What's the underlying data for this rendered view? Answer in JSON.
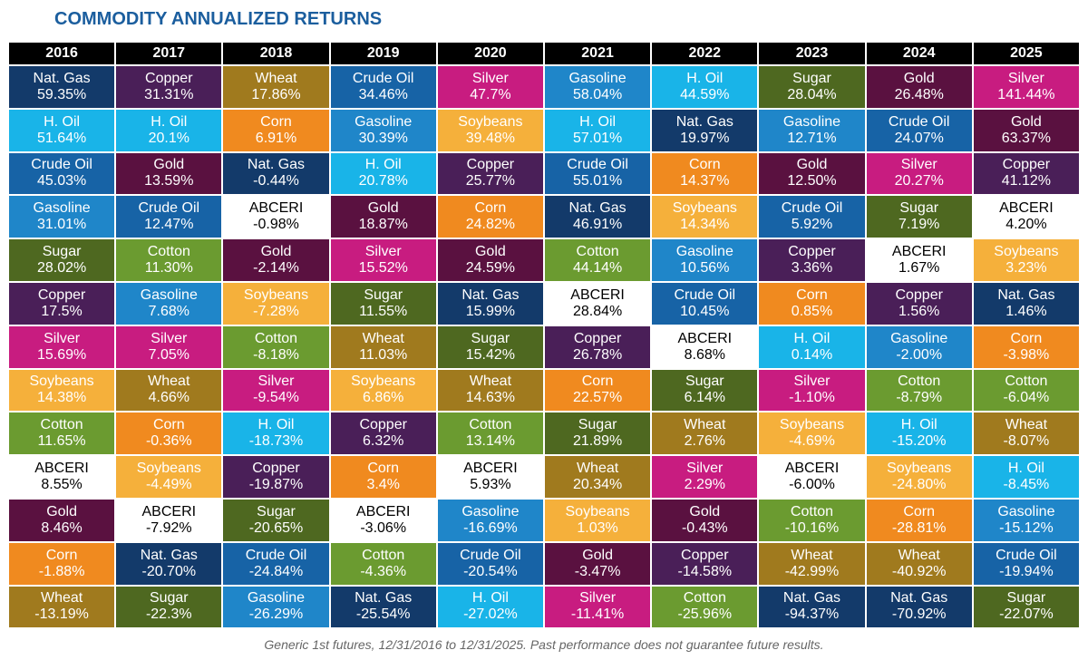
{
  "title": "COMMODITY ANNUALIZED RETURNS",
  "footnote": "Generic 1st futures, 12/31/2016 to 12/31/2025. Past performance does not guarantee future results.",
  "colors": {
    "Nat. Gas": "#133a6a",
    "Copper": "#4a1f58",
    "Gold": "#5a1140",
    "Wheat": "#a07a1e",
    "Crude Oil": "#1763a6",
    "Silver": "#c81c80",
    "Gasoline": "#1f86c9",
    "H. Oil": "#19b4e8",
    "Sugar": "#4e6820",
    "Corn": "#f08a1f",
    "Soybeans": "#f5b03b",
    "ABCERI": "#ffffff",
    "Cotton": "#6b9b30"
  },
  "table": {
    "columns": [
      {
        "year": "2016",
        "cells": [
          [
            "Nat. Gas",
            "59.35%"
          ],
          [
            "H. Oil",
            "51.64%"
          ],
          [
            "Crude Oil",
            "45.03%"
          ],
          [
            "Gasoline",
            "31.01%"
          ],
          [
            "Sugar",
            "28.02%"
          ],
          [
            "Copper",
            "17.5%"
          ],
          [
            "Silver",
            "15.69%"
          ],
          [
            "Soybeans",
            "14.38%"
          ],
          [
            "Cotton",
            "11.65%"
          ],
          [
            "ABCERI",
            "8.55%"
          ],
          [
            "Gold",
            "8.46%"
          ],
          [
            "Corn",
            "-1.88%"
          ],
          [
            "Wheat",
            "-13.19%"
          ]
        ]
      },
      {
        "year": "2017",
        "cells": [
          [
            "Copper",
            "31.31%"
          ],
          [
            "H. Oil",
            "20.1%"
          ],
          [
            "Gold",
            "13.59%"
          ],
          [
            "Crude Oil",
            "12.47%"
          ],
          [
            "Cotton",
            "11.30%"
          ],
          [
            "Gasoline",
            "7.68%"
          ],
          [
            "Silver",
            "7.05%"
          ],
          [
            "Wheat",
            "4.66%"
          ],
          [
            "Corn",
            "-0.36%"
          ],
          [
            "Soybeans",
            "-4.49%"
          ],
          [
            "ABCERI",
            "-7.92%"
          ],
          [
            "Nat. Gas",
            "-20.70%"
          ],
          [
            "Sugar",
            "-22.3%"
          ]
        ]
      },
      {
        "year": "2018",
        "cells": [
          [
            "Wheat",
            "17.86%"
          ],
          [
            "Corn",
            "6.91%"
          ],
          [
            "Nat. Gas",
            "-0.44%"
          ],
          [
            "ABCERI",
            "-0.98%"
          ],
          [
            "Gold",
            "-2.14%"
          ],
          [
            "Soybeans",
            "-7.28%"
          ],
          [
            "Cotton",
            "-8.18%"
          ],
          [
            "Silver",
            "-9.54%"
          ],
          [
            "H. Oil",
            "-18.73%"
          ],
          [
            "Copper",
            "-19.87%"
          ],
          [
            "Sugar",
            "-20.65%"
          ],
          [
            "Crude Oil",
            "-24.84%"
          ],
          [
            "Gasoline",
            "-26.29%"
          ]
        ]
      },
      {
        "year": "2019",
        "cells": [
          [
            "Crude Oil",
            "34.46%"
          ],
          [
            "Gasoline",
            "30.39%"
          ],
          [
            "H. Oil",
            "20.78%"
          ],
          [
            "Gold",
            "18.87%"
          ],
          [
            "Silver",
            "15.52%"
          ],
          [
            "Sugar",
            "11.55%"
          ],
          [
            "Wheat",
            "11.03%"
          ],
          [
            "Soybeans",
            "6.86%"
          ],
          [
            "Copper",
            "6.32%"
          ],
          [
            "Corn",
            "3.4%"
          ],
          [
            "ABCERI",
            "-3.06%"
          ],
          [
            "Cotton",
            "-4.36%"
          ],
          [
            "Nat. Gas",
            "-25.54%"
          ]
        ]
      },
      {
        "year": "2020",
        "cells": [
          [
            "Silver",
            "47.7%"
          ],
          [
            "Soybeans",
            "39.48%"
          ],
          [
            "Copper",
            "25.77%"
          ],
          [
            "Corn",
            "24.82%"
          ],
          [
            "Gold",
            "24.59%"
          ],
          [
            "Nat. Gas",
            "15.99%"
          ],
          [
            "Sugar",
            "15.42%"
          ],
          [
            "Wheat",
            "14.63%"
          ],
          [
            "Cotton",
            "13.14%"
          ],
          [
            "ABCERI",
            "5.93%"
          ],
          [
            "Gasoline",
            "-16.69%"
          ],
          [
            "Crude Oil",
            "-20.54%"
          ],
          [
            "H. Oil",
            "-27.02%"
          ]
        ]
      },
      {
        "year": "2021",
        "cells": [
          [
            "Gasoline",
            "58.04%"
          ],
          [
            "H. Oil",
            "57.01%"
          ],
          [
            "Crude Oil",
            "55.01%"
          ],
          [
            "Nat. Gas",
            "46.91%"
          ],
          [
            "Cotton",
            "44.14%"
          ],
          [
            "ABCERI",
            "28.84%"
          ],
          [
            "Copper",
            "26.78%"
          ],
          [
            "Corn",
            "22.57%"
          ],
          [
            "Sugar",
            "21.89%"
          ],
          [
            "Wheat",
            "20.34%"
          ],
          [
            "Soybeans",
            "1.03%"
          ],
          [
            "Gold",
            "-3.47%"
          ],
          [
            "Silver",
            "-11.41%"
          ]
        ]
      },
      {
        "year": "2022",
        "cells": [
          [
            "H. Oil",
            "44.59%"
          ],
          [
            "Nat. Gas",
            "19.97%"
          ],
          [
            "Corn",
            "14.37%"
          ],
          [
            "Soybeans",
            "14.34%"
          ],
          [
            "Gasoline",
            "10.56%"
          ],
          [
            "Crude Oil",
            "10.45%"
          ],
          [
            "ABCERI",
            "8.68%"
          ],
          [
            "Sugar",
            "6.14%"
          ],
          [
            "Wheat",
            "2.76%"
          ],
          [
            "Silver",
            "2.29%"
          ],
          [
            "Gold",
            "-0.43%"
          ],
          [
            "Copper",
            "-14.58%"
          ],
          [
            "Cotton",
            "-25.96%"
          ]
        ]
      },
      {
        "year": "2023",
        "cells": [
          [
            "Sugar",
            "28.04%"
          ],
          [
            "Gasoline",
            "12.71%"
          ],
          [
            "Gold",
            "12.50%"
          ],
          [
            "Crude Oil",
            "5.92%"
          ],
          [
            "Copper",
            "3.36%"
          ],
          [
            "Corn",
            "0.85%"
          ],
          [
            "H. Oil",
            "0.14%"
          ],
          [
            "Silver",
            "-1.10%"
          ],
          [
            "Soybeans",
            "-4.69%"
          ],
          [
            "ABCERI",
            "-6.00%"
          ],
          [
            "Cotton",
            "-10.16%"
          ],
          [
            "Wheat",
            "-42.99%"
          ],
          [
            "Nat. Gas",
            "-94.37%"
          ]
        ]
      },
      {
        "year": "2024",
        "cells": [
          [
            "Gold",
            "26.48%"
          ],
          [
            "Crude Oil",
            "24.07%"
          ],
          [
            "Silver",
            "20.27%"
          ],
          [
            "Sugar",
            "7.19%"
          ],
          [
            "ABCERI",
            "1.67%"
          ],
          [
            "Copper",
            "1.56%"
          ],
          [
            "Gasoline",
            "-2.00%"
          ],
          [
            "Cotton",
            "-8.79%"
          ],
          [
            "H. Oil",
            "-15.20%"
          ],
          [
            "Soybeans",
            "-24.80%"
          ],
          [
            "Corn",
            "-28.81%"
          ],
          [
            "Wheat",
            "-40.92%"
          ],
          [
            "Nat. Gas",
            "-70.92%"
          ]
        ]
      },
      {
        "year": "2025",
        "cells": [
          [
            "Silver",
            "141.44%"
          ],
          [
            "Gold",
            "63.37%"
          ],
          [
            "Copper",
            "41.12%"
          ],
          [
            "ABCERI",
            "4.20%"
          ],
          [
            "Soybeans",
            "3.23%"
          ],
          [
            "Nat. Gas",
            "1.46%"
          ],
          [
            "Corn",
            "-3.98%"
          ],
          [
            "Cotton",
            "-6.04%"
          ],
          [
            "Wheat",
            "-8.07%"
          ],
          [
            "H. Oil",
            "-8.45%"
          ],
          [
            "Gasoline",
            "-15.12%"
          ],
          [
            "Crude Oil",
            "-19.94%"
          ],
          [
            "Sugar",
            "-22.07%"
          ]
        ]
      }
    ]
  }
}
